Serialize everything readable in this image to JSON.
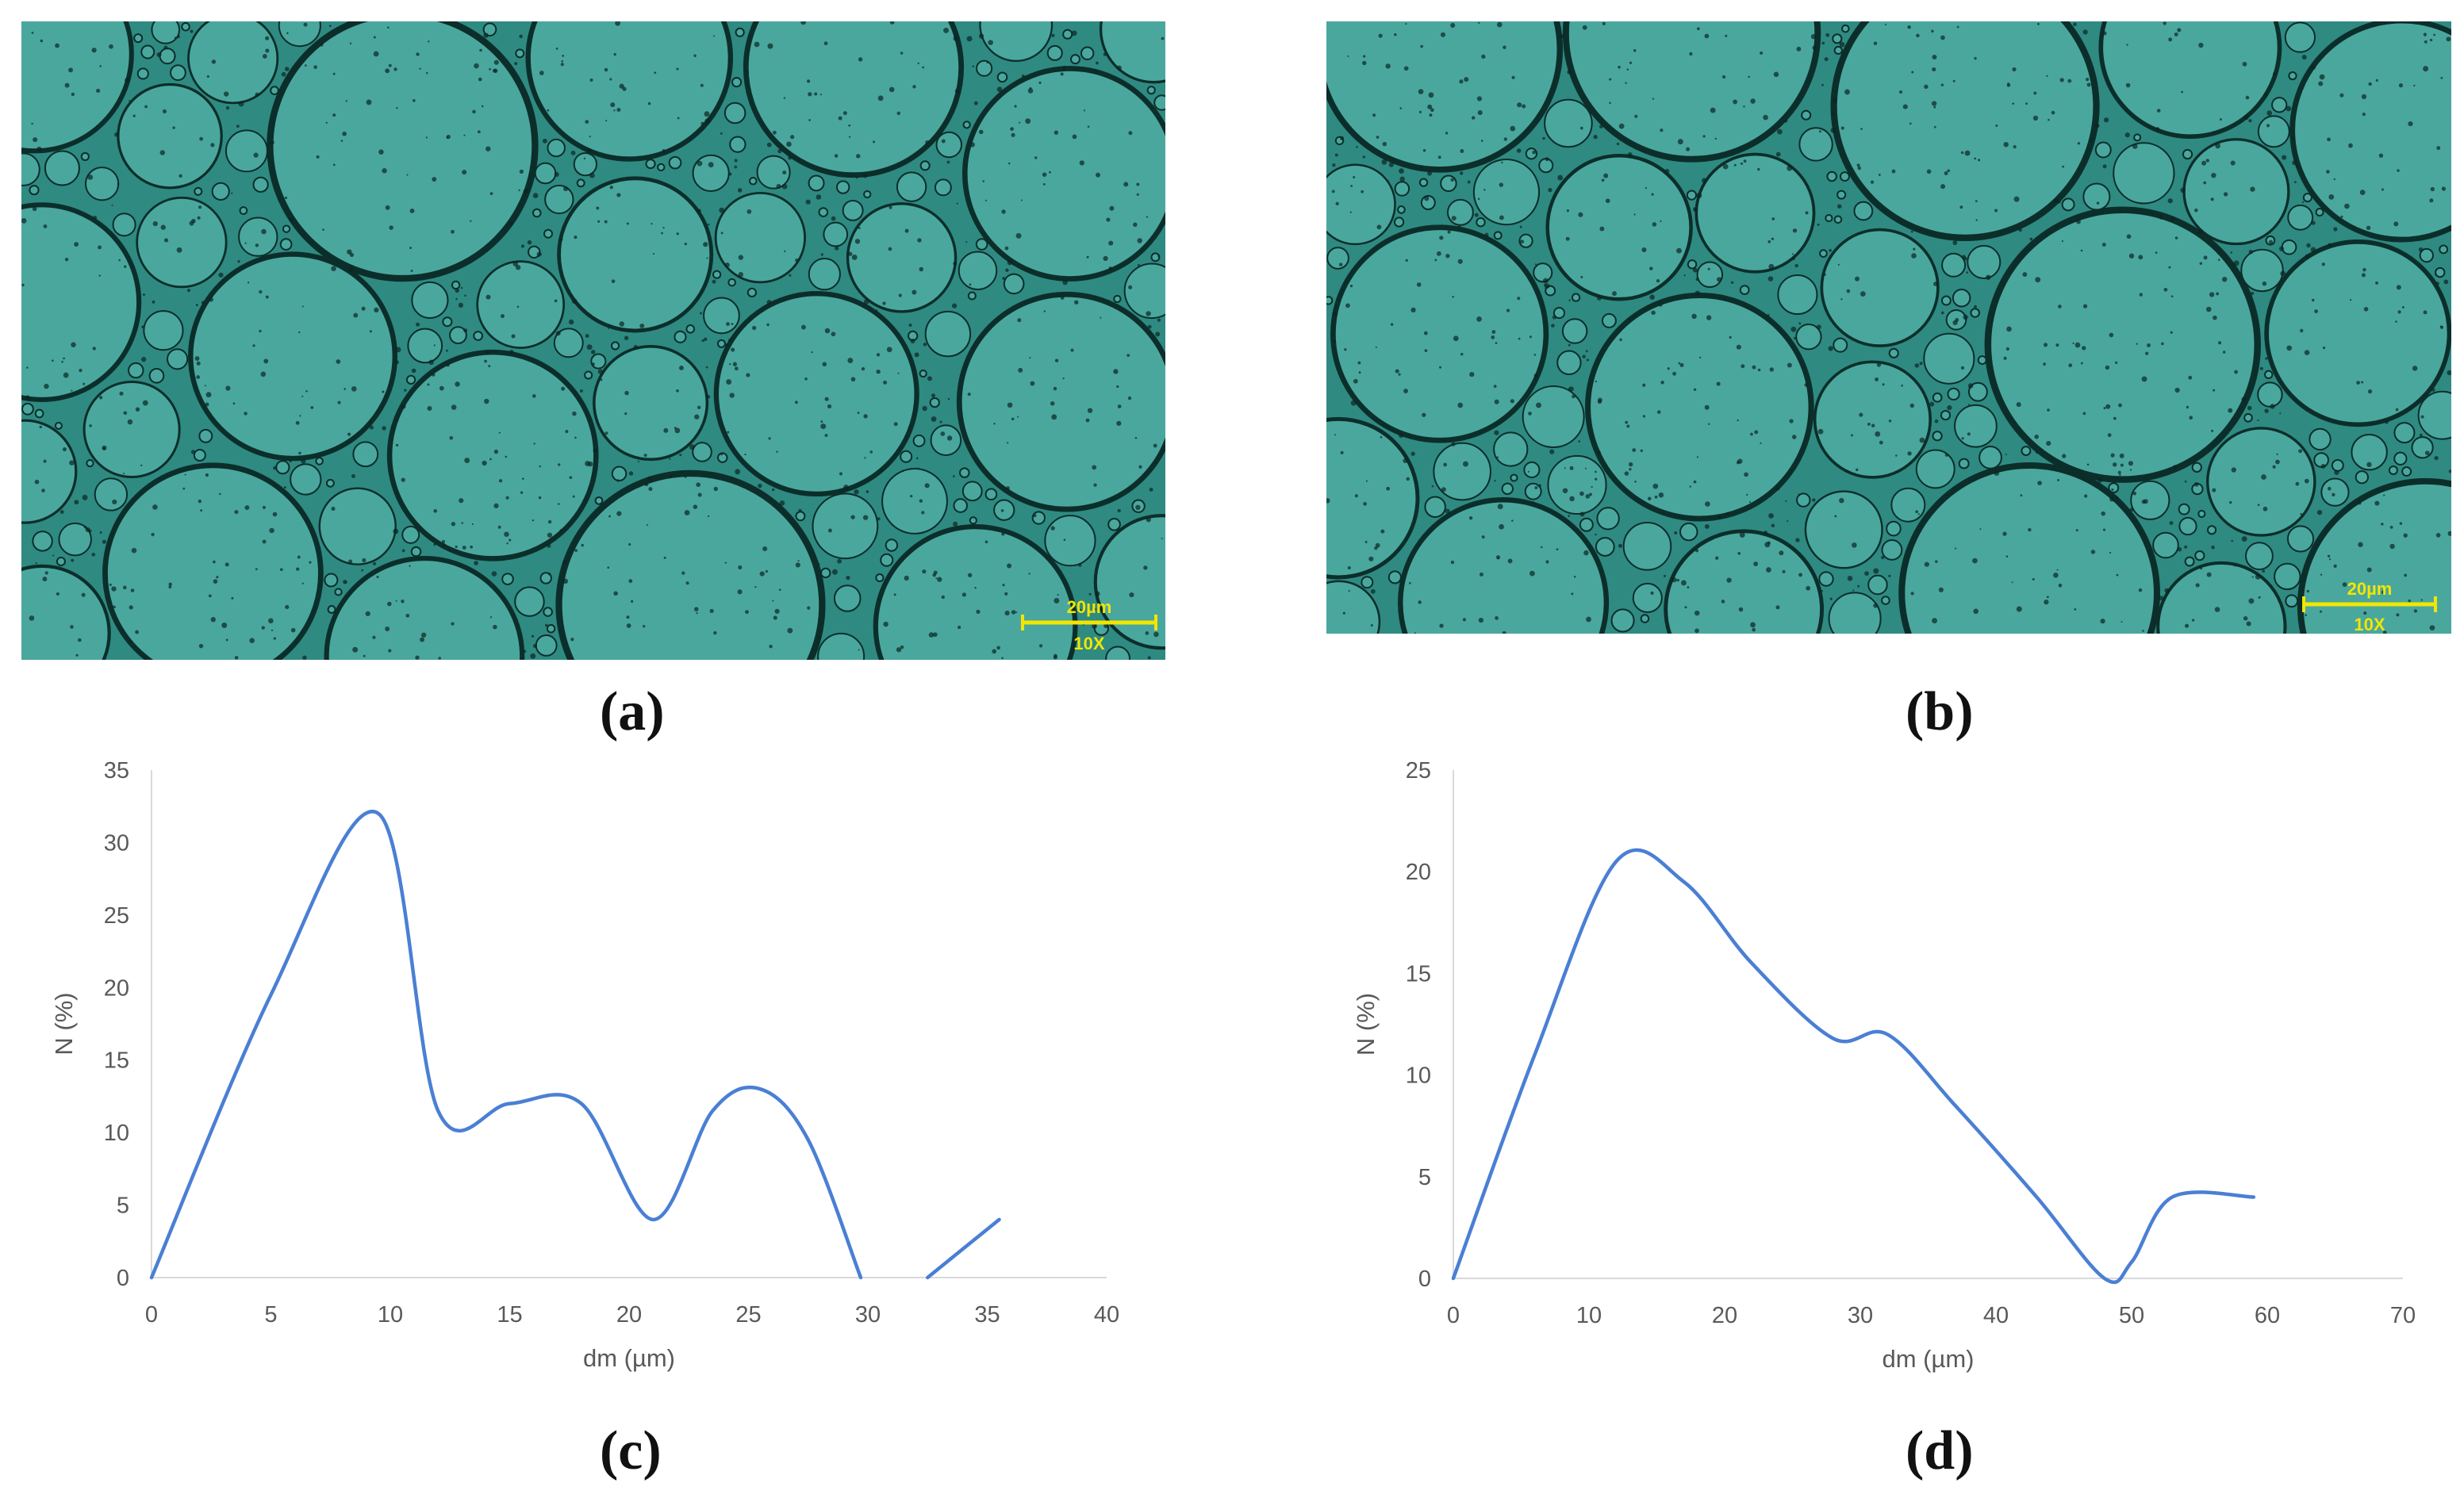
{
  "panels": {
    "a": {
      "label": "(a)",
      "scale_bar": "20µm",
      "magnification": "10X"
    },
    "b": {
      "label": "(b)",
      "scale_bar": "20µm",
      "magnification": "10X"
    },
    "c": {
      "label": "(c)"
    },
    "d": {
      "label": "(d)"
    }
  },
  "colors": {
    "line": "#4a7fd4",
    "emulsion": "#2f8a82",
    "droplet": "#4aa79e",
    "scale_bar": "#f2e600"
  },
  "chart_data": [
    {
      "type": "line",
      "panel": "c",
      "xlabel": "dm (µm)",
      "ylabel": "N (%)",
      "xlim": [
        0,
        40
      ],
      "ylim": [
        0,
        35
      ],
      "xticks": [
        0,
        5,
        10,
        15,
        20,
        25,
        30,
        35,
        40
      ],
      "yticks": [
        0,
        5,
        10,
        15,
        20,
        25,
        30,
        35
      ],
      "series": [
        {
          "segments": [
            {
              "x": [
                0,
                5,
                9.5,
                12,
                15,
                18,
                21,
                23.5,
                25.5,
                27.5,
                29.7
              ],
              "y": [
                0,
                19.5,
                32,
                11.5,
                12,
                12,
                4,
                11.5,
                13,
                9.5,
                0
              ]
            },
            {
              "x": [
                32.5,
                35.5
              ],
              "y": [
                0,
                4
              ]
            }
          ]
        }
      ]
    },
    {
      "type": "line",
      "panel": "d",
      "xlabel": "dm (µm)",
      "ylabel": "N (%)",
      "xlim": [
        0,
        70
      ],
      "ylim": [
        0,
        25
      ],
      "xticks": [
        0,
        10,
        20,
        30,
        40,
        50,
        60,
        70
      ],
      "yticks": [
        0,
        5,
        10,
        15,
        20,
        25
      ],
      "series": [
        {
          "x": [
            0,
            6,
            12,
            17,
            22,
            28,
            32,
            37,
            43,
            48,
            50,
            53,
            59
          ],
          "y": [
            0,
            11,
            20.5,
            19.5,
            15.5,
            11.8,
            12,
            8.5,
            4,
            0,
            0.8,
            4,
            4
          ]
        }
      ]
    }
  ]
}
